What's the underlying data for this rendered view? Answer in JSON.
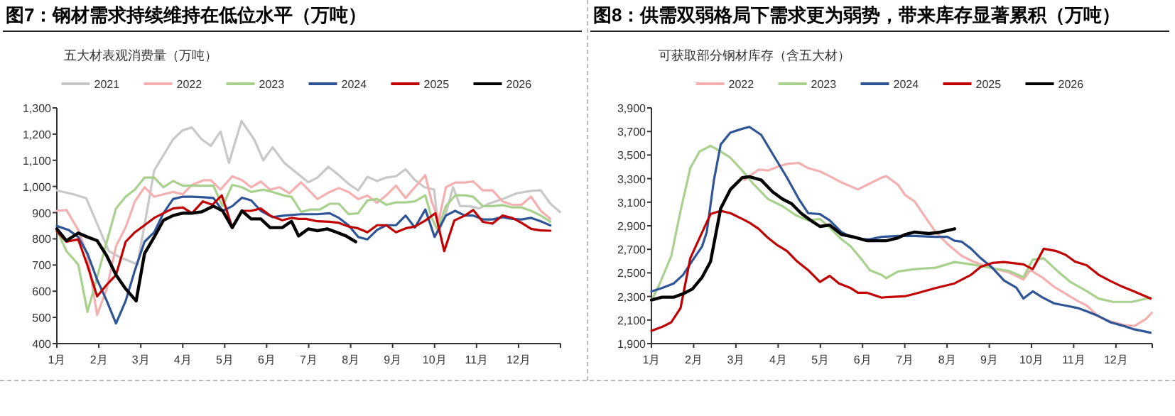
{
  "chart_data": [
    {
      "type": "line",
      "title": "图7：钢材需求持续维持在低位水平（万吨）",
      "subtitle": "五大材表观消费量（万吨）",
      "legend": "top",
      "xlim": [
        1,
        13
      ],
      "xticks": [
        {
          "value": 1,
          "label": "1月"
        },
        {
          "value": 2,
          "label": "2月"
        },
        {
          "value": 3,
          "label": "3月"
        },
        {
          "value": 4,
          "label": "4月"
        },
        {
          "value": 5,
          "label": "5月"
        },
        {
          "value": 6,
          "label": "6月"
        },
        {
          "value": 7,
          "label": "7月"
        },
        {
          "value": 8,
          "label": "8月"
        },
        {
          "value": 9,
          "label": "9月"
        },
        {
          "value": 10,
          "label": "10月"
        },
        {
          "value": 11,
          "label": "11月"
        },
        {
          "value": 12,
          "label": "12月"
        }
      ],
      "ylim": [
        400,
        1300
      ],
      "yticks": [
        400,
        500,
        600,
        700,
        800,
        900,
        {
          "value": 1000,
          "label": "1,000"
        },
        {
          "value": 1100,
          "label": "1,100"
        },
        {
          "value": 1200,
          "label": "1,200"
        },
        {
          "value": 1300,
          "label": "1,300"
        }
      ],
      "series": [
        {
          "name": "2021",
          "color": "#c8c8c8",
          "x": [
            1.0,
            1.4,
            1.7,
            2.24,
            2.5,
            2.92,
            3.32,
            3.77,
            4.0,
            4.22,
            4.45,
            4.67,
            4.9,
            5.1,
            5.4,
            5.7,
            5.92,
            6.14,
            6.42,
            6.76,
            6.99,
            7.21,
            7.47,
            7.72,
            7.95,
            8.18,
            8.4,
            8.63,
            8.85,
            9.08,
            9.31,
            9.53,
            9.76,
            9.99,
            10.1,
            10.27,
            10.44,
            10.61,
            10.83,
            11.06,
            11.29,
            11.62,
            11.96,
            12.3,
            12.53,
            12.76,
            12.99
          ],
          "values": [
            985,
            970,
            955,
            753,
            730,
            702,
            1061,
            1180,
            1215,
            1225,
            1180,
            1155,
            1210,
            1090,
            1250,
            1180,
            1100,
            1150,
            1090,
            1046,
            1016,
            1034,
            1075,
            1043,
            1010,
            985,
            1037,
            1021,
            1034,
            1039,
            1066,
            1025,
            997,
            988,
            825,
            898,
            997,
            925,
            925,
            916,
            934,
            952,
            974,
            983,
            985,
            934,
            902
          ]
        },
        {
          "name": "2022",
          "color": "#f4b0b0",
          "x": [
            1.0,
            1.23,
            1.51,
            1.73,
            1.96,
            2.19,
            2.41,
            2.64,
            2.86,
            3.09,
            3.32,
            3.54,
            3.77,
            4.0,
            4.22,
            4.5,
            4.67,
            4.9,
            5.18,
            5.41,
            5.63,
            5.86,
            6.08,
            6.31,
            6.54,
            6.82,
            6.99,
            7.21,
            7.5,
            7.72,
            7.95,
            8.18,
            8.4,
            8.63,
            8.85,
            9.08,
            9.31,
            9.53,
            9.78,
            9.93,
            10.1,
            10.27,
            10.49,
            10.72,
            10.92,
            11.15,
            11.38,
            11.62,
            11.85,
            12.07,
            12.3,
            12.53,
            12.76
          ],
          "values": [
            907,
            910,
            834,
            735,
            509,
            609,
            772,
            844,
            943,
            997,
            961,
            970,
            979,
            970,
            1006,
            1024,
            1024,
            988,
            1039,
            1024,
            997,
            1019,
            988,
            997,
            974,
            1016,
            988,
            952,
            979,
            994,
            979,
            952,
            965,
            938,
            966,
            1003,
            956,
            997,
            1043,
            943,
            871,
            997,
            1015,
            1015,
            1019,
            985,
            985,
            943,
            930,
            930,
            961,
            907,
            876
          ]
        },
        {
          "name": "2023",
          "color": "#a9d18e",
          "x": [
            1.0,
            1.23,
            1.51,
            1.73,
            1.96,
            2.19,
            2.41,
            2.64,
            2.86,
            3.09,
            3.32,
            3.54,
            3.77,
            4.0,
            4.28,
            4.5,
            4.73,
            4.95,
            5.18,
            5.41,
            5.63,
            5.92,
            6.14,
            6.42,
            6.59,
            6.82,
            7.05,
            7.27,
            7.5,
            7.72,
            7.95,
            8.18,
            8.4,
            8.63,
            8.85,
            9.08,
            9.31,
            9.53,
            9.78,
            9.93,
            10.07,
            10.27,
            10.49,
            10.72,
            10.92,
            11.15,
            11.38,
            11.62,
            11.85,
            12.07,
            12.3,
            12.53,
            12.76
          ],
          "values": [
            834,
            753,
            702,
            521,
            653,
            789,
            916,
            961,
            988,
            1034,
            1034,
            997,
            1021,
            1003,
            1003,
            1003,
            1003,
            925,
            1006,
            997,
            979,
            988,
            979,
            965,
            961,
            903,
            912,
            912,
            934,
            934,
            894,
            898,
            947,
            952,
            930,
            939,
            939,
            943,
            966,
            880,
            835,
            925,
            966,
            966,
            961,
            925,
            925,
            929,
            920,
            920,
            907,
            889,
            865
          ]
        },
        {
          "name": "2024",
          "color": "#2f5597",
          "x": [
            1.0,
            1.28,
            1.51,
            1.73,
            1.96,
            2.19,
            2.41,
            2.64,
            2.86,
            3.09,
            3.32,
            3.54,
            3.77,
            4.0,
            4.22,
            4.5,
            4.73,
            4.95,
            5.18,
            5.41,
            5.63,
            5.86,
            6.14,
            6.42,
            6.82,
            7.21,
            7.5,
            7.72,
            7.95,
            8.18,
            8.4,
            8.63,
            8.85,
            9.08,
            9.31,
            9.53,
            9.78,
            10.0,
            10.27,
            10.49,
            10.72,
            10.92,
            11.15,
            11.38,
            11.62,
            11.85,
            12.07,
            12.3,
            12.53,
            12.76
          ],
          "values": [
            849,
            834,
            807,
            744,
            644,
            563,
            477,
            563,
            680,
            789,
            825,
            898,
            952,
            961,
            961,
            959,
            956,
            907,
            925,
            957,
            947,
            907,
            883,
            889,
            894,
            894,
            898,
            880,
            852,
            807,
            798,
            834,
            852,
            852,
            889,
            843,
            912,
            807,
            889,
            907,
            889,
            889,
            874,
            874,
            883,
            876,
            874,
            880,
            867,
            851
          ]
        },
        {
          "name": "2025",
          "color": "#c00000",
          "x": [
            1.0,
            1.23,
            1.51,
            1.73,
            1.96,
            2.19,
            2.41,
            2.64,
            2.86,
            3.09,
            3.32,
            3.54,
            3.77,
            4.0,
            4.22,
            4.48,
            4.71,
            4.93,
            5.18,
            5.41,
            5.63,
            5.86,
            6.08,
            6.37,
            6.59,
            6.76,
            6.94,
            7.21,
            7.5,
            7.72,
            7.95,
            8.18,
            8.4,
            8.63,
            8.85,
            9.08,
            9.31,
            9.53,
            9.78,
            10.02,
            10.23,
            10.47,
            10.72,
            10.92,
            11.15,
            11.38,
            11.62,
            11.85,
            12.07,
            12.3,
            12.53,
            12.76
          ],
          "values": [
            829,
            789,
            798,
            698,
            580,
            625,
            662,
            789,
            825,
            852,
            880,
            898,
            916,
            920,
            898,
            943,
            930,
            966,
            843,
            907,
            907,
            916,
            889,
            871,
            880,
            876,
            876,
            867,
            865,
            861,
            847,
            840,
            825,
            852,
            852,
            825,
            840,
            847,
            870,
            898,
            753,
            870,
            889,
            910,
            865,
            858,
            889,
            880,
            861,
            838,
            832,
            831
          ]
        },
        {
          "name": "2026",
          "color": "#000000",
          "x": [
            1.0,
            1.23,
            1.51,
            1.73,
            1.96,
            2.19,
            2.41,
            2.64,
            2.89,
            3.09,
            3.32,
            3.54,
            3.77,
            4.0,
            4.22,
            4.45,
            4.73,
            4.95,
            5.18,
            5.41,
            5.63,
            5.86,
            6.08,
            6.37,
            6.59,
            6.76,
            6.99,
            7.21,
            7.44,
            7.67,
            7.89,
            8.12
          ],
          "values": [
            838,
            793,
            822,
            807,
            793,
            735,
            662,
            609,
            563,
            744,
            807,
            871,
            889,
            898,
            898,
            903,
            925,
            907,
            843,
            907,
            876,
            876,
            843,
            843,
            867,
            811,
            838,
            831,
            838,
            825,
            811,
            789
          ]
        }
      ]
    },
    {
      "type": "line",
      "title": "图8：供需双弱格局下需求更为弱势，带来库存显著累积（万吨）",
      "subtitle": "可获取部分钢材库存（含五大材）",
      "legend": "top",
      "xlim": [
        1,
        12.86
      ],
      "xticks": [
        {
          "value": 1,
          "label": "1月"
        },
        {
          "value": 2,
          "label": "2月"
        },
        {
          "value": 3,
          "label": "3月"
        },
        {
          "value": 4,
          "label": "4月"
        },
        {
          "value": 5,
          "label": "5月"
        },
        {
          "value": 6,
          "label": "6月"
        },
        {
          "value": 7,
          "label": "7月"
        },
        {
          "value": 8,
          "label": "8月"
        },
        {
          "value": 9,
          "label": "9月"
        },
        {
          "value": 10,
          "label": "10月"
        },
        {
          "value": 11,
          "label": "11月"
        },
        {
          "value": 12,
          "label": "12月"
        }
      ],
      "ylim": [
        1900,
        3900
      ],
      "yticks": [
        {
          "value": 1900,
          "label": "1,900"
        },
        {
          "value": 2100,
          "label": "2,100"
        },
        {
          "value": 2300,
          "label": "2,300"
        },
        {
          "value": 2500,
          "label": "2,500"
        },
        {
          "value": 2700,
          "label": "2,700"
        },
        {
          "value": 2900,
          "label": "2,900"
        },
        {
          "value": 3100,
          "label": "3,100"
        },
        {
          "value": 3300,
          "label": "3,300"
        },
        {
          "value": 3500,
          "label": "3,500"
        },
        {
          "value": 3700,
          "label": "3,700"
        },
        {
          "value": 3900,
          "label": "3,900"
        }
      ],
      "series": [
        {
          "name": "2022",
          "color": "#f4b0b0",
          "x": [
            3.2,
            3.54,
            3.76,
            3.99,
            4.21,
            4.49,
            4.71,
            4.99,
            5.22,
            5.5,
            5.89,
            6.11,
            6.45,
            6.56,
            6.84,
            7.01,
            7.23,
            7.46,
            7.73,
            8.01,
            8.35,
            8.62,
            9.02,
            9.47,
            9.81,
            9.97,
            10.25,
            10.53,
            10.81,
            11.09,
            11.31,
            11.59,
            11.87,
            12.15,
            12.43,
            12.71,
            12.85
          ],
          "values": [
            3288,
            3377,
            3369,
            3401,
            3425,
            3433,
            3389,
            3361,
            3321,
            3268,
            3208,
            3248,
            3308,
            3321,
            3248,
            3160,
            3107,
            2987,
            2846,
            2745,
            2644,
            2596,
            2544,
            2504,
            2443,
            2524,
            2463,
            2383,
            2323,
            2262,
            2222,
            2129,
            2089,
            2061,
            2049,
            2109,
            2162
          ]
        },
        {
          "name": "2023",
          "color": "#a9d18e",
          "x": [
            1.0,
            1.19,
            1.47,
            1.69,
            1.92,
            2.14,
            2.4,
            2.64,
            2.87,
            3.15,
            3.43,
            3.76,
            4.1,
            4.43,
            4.71,
            4.99,
            5.22,
            5.5,
            5.72,
            6.0,
            6.17,
            6.45,
            6.56,
            6.84,
            7.23,
            7.73,
            8.18,
            8.57,
            9.02,
            9.47,
            9.81,
            10.03,
            10.29,
            10.59,
            10.92,
            11.26,
            11.59,
            11.93,
            12.38,
            12.82
          ],
          "values": [
            2262,
            2403,
            2644,
            3027,
            3389,
            3530,
            3578,
            3530,
            3477,
            3369,
            3248,
            3127,
            3067,
            2987,
            2946,
            2958,
            2886,
            2785,
            2725,
            2604,
            2524,
            2483,
            2455,
            2512,
            2532,
            2544,
            2592,
            2572,
            2544,
            2516,
            2463,
            2612,
            2624,
            2524,
            2423,
            2355,
            2282,
            2254,
            2254,
            2290
          ]
        },
        {
          "name": "2024",
          "color": "#2f5597",
          "x": [
            1.0,
            1.25,
            1.53,
            1.75,
            1.97,
            2.2,
            2.31,
            2.48,
            2.64,
            2.87,
            3.15,
            3.32,
            3.6,
            3.87,
            4.21,
            4.49,
            4.71,
            4.99,
            5.22,
            5.5,
            5.72,
            6.0,
            6.17,
            6.45,
            6.84,
            7.23,
            7.73,
            8.01,
            8.18,
            8.35,
            8.57,
            8.8,
            9.07,
            9.35,
            9.64,
            9.81,
            10.03,
            10.25,
            10.53,
            10.81,
            11.09,
            11.31,
            11.59,
            11.87,
            12.15,
            12.43,
            12.82
          ],
          "values": [
            2343,
            2371,
            2411,
            2484,
            2604,
            2725,
            2846,
            3288,
            3590,
            3691,
            3723,
            3739,
            3671,
            3510,
            3308,
            3127,
            3007,
            2999,
            2946,
            2846,
            2806,
            2785,
            2785,
            2806,
            2814,
            2814,
            2806,
            2806,
            2773,
            2765,
            2705,
            2624,
            2544,
            2435,
            2375,
            2282,
            2343,
            2294,
            2242,
            2222,
            2202,
            2174,
            2133,
            2081,
            2053,
            2021,
            1993
          ]
        },
        {
          "name": "2025",
          "color": "#c00000",
          "x": [
            1.0,
            1.25,
            1.47,
            1.69,
            1.92,
            2.14,
            2.4,
            2.64,
            2.87,
            3.15,
            3.32,
            3.54,
            3.76,
            3.99,
            4.21,
            4.43,
            4.71,
            4.99,
            5.22,
            5.44,
            5.72,
            5.89,
            6.11,
            6.45,
            6.56,
            7.01,
            7.23,
            7.73,
            8.18,
            8.35,
            8.57,
            8.8,
            9.07,
            9.35,
            9.81,
            10.03,
            10.29,
            10.59,
            10.81,
            11.03,
            11.31,
            11.59,
            11.87,
            12.15,
            12.43,
            12.82
          ],
          "values": [
            2009,
            2041,
            2081,
            2202,
            2624,
            2797,
            2999,
            3027,
            3007,
            2958,
            2926,
            2874,
            2797,
            2733,
            2685,
            2604,
            2524,
            2423,
            2475,
            2411,
            2371,
            2331,
            2331,
            2290,
            2294,
            2302,
            2322,
            2371,
            2411,
            2443,
            2484,
            2552,
            2584,
            2592,
            2572,
            2532,
            2705,
            2685,
            2653,
            2596,
            2564,
            2484,
            2431,
            2383,
            2343,
            2282
          ]
        },
        {
          "name": "2026",
          "color": "#000000",
          "x": [
            1.0,
            1.25,
            1.53,
            1.75,
            1.97,
            2.2,
            2.4,
            2.64,
            2.87,
            3.15,
            3.32,
            3.6,
            3.87,
            4.1,
            4.32,
            4.54,
            4.77,
            4.99,
            5.22,
            5.5,
            5.78,
            6.11,
            6.45,
            6.56,
            6.84,
            7.01,
            7.23,
            7.57,
            7.85,
            8.18
          ],
          "values": [
            2270,
            2294,
            2294,
            2323,
            2363,
            2463,
            2596,
            3047,
            3208,
            3308,
            3316,
            3288,
            3188,
            3127,
            3087,
            3007,
            2946,
            2894,
            2906,
            2826,
            2806,
            2773,
            2773,
            2773,
            2797,
            2826,
            2846,
            2834,
            2846,
            2874
          ]
        }
      ]
    }
  ]
}
